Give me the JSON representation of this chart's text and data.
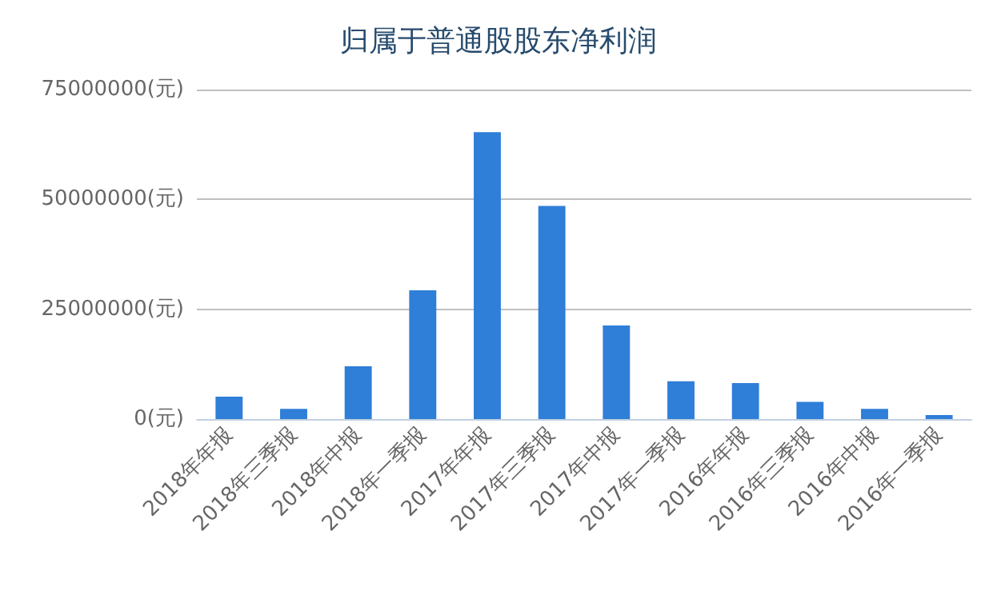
{
  "chart_data": {
    "type": "bar",
    "title": "归属于普通股股东净利润",
    "categories": [
      "2018年年报",
      "2018年三季报",
      "2018年中报",
      "2018年一季报",
      "2017年年报",
      "2017年三季报",
      "2017年中报",
      "2017年一季报",
      "2016年年报",
      "2016年三季报",
      "2016年中报",
      "2016年一季报"
    ],
    "values": [
      5100000,
      2300000,
      12000000,
      29300000,
      65300000,
      48500000,
      21300000,
      8600000,
      8200000,
      3900000,
      2300000,
      900000
    ],
    "color": "#2f7ed8",
    "ylim": [
      0,
      75000000
    ],
    "yticks": [
      {
        "value": 0,
        "label": "0(元)"
      },
      {
        "value": 25000000,
        "label": "25000000(元)"
      },
      {
        "value": 50000000,
        "label": "50000000(元)"
      },
      {
        "value": 75000000,
        "label": "75000000(元)"
      }
    ],
    "grid": "y"
  }
}
